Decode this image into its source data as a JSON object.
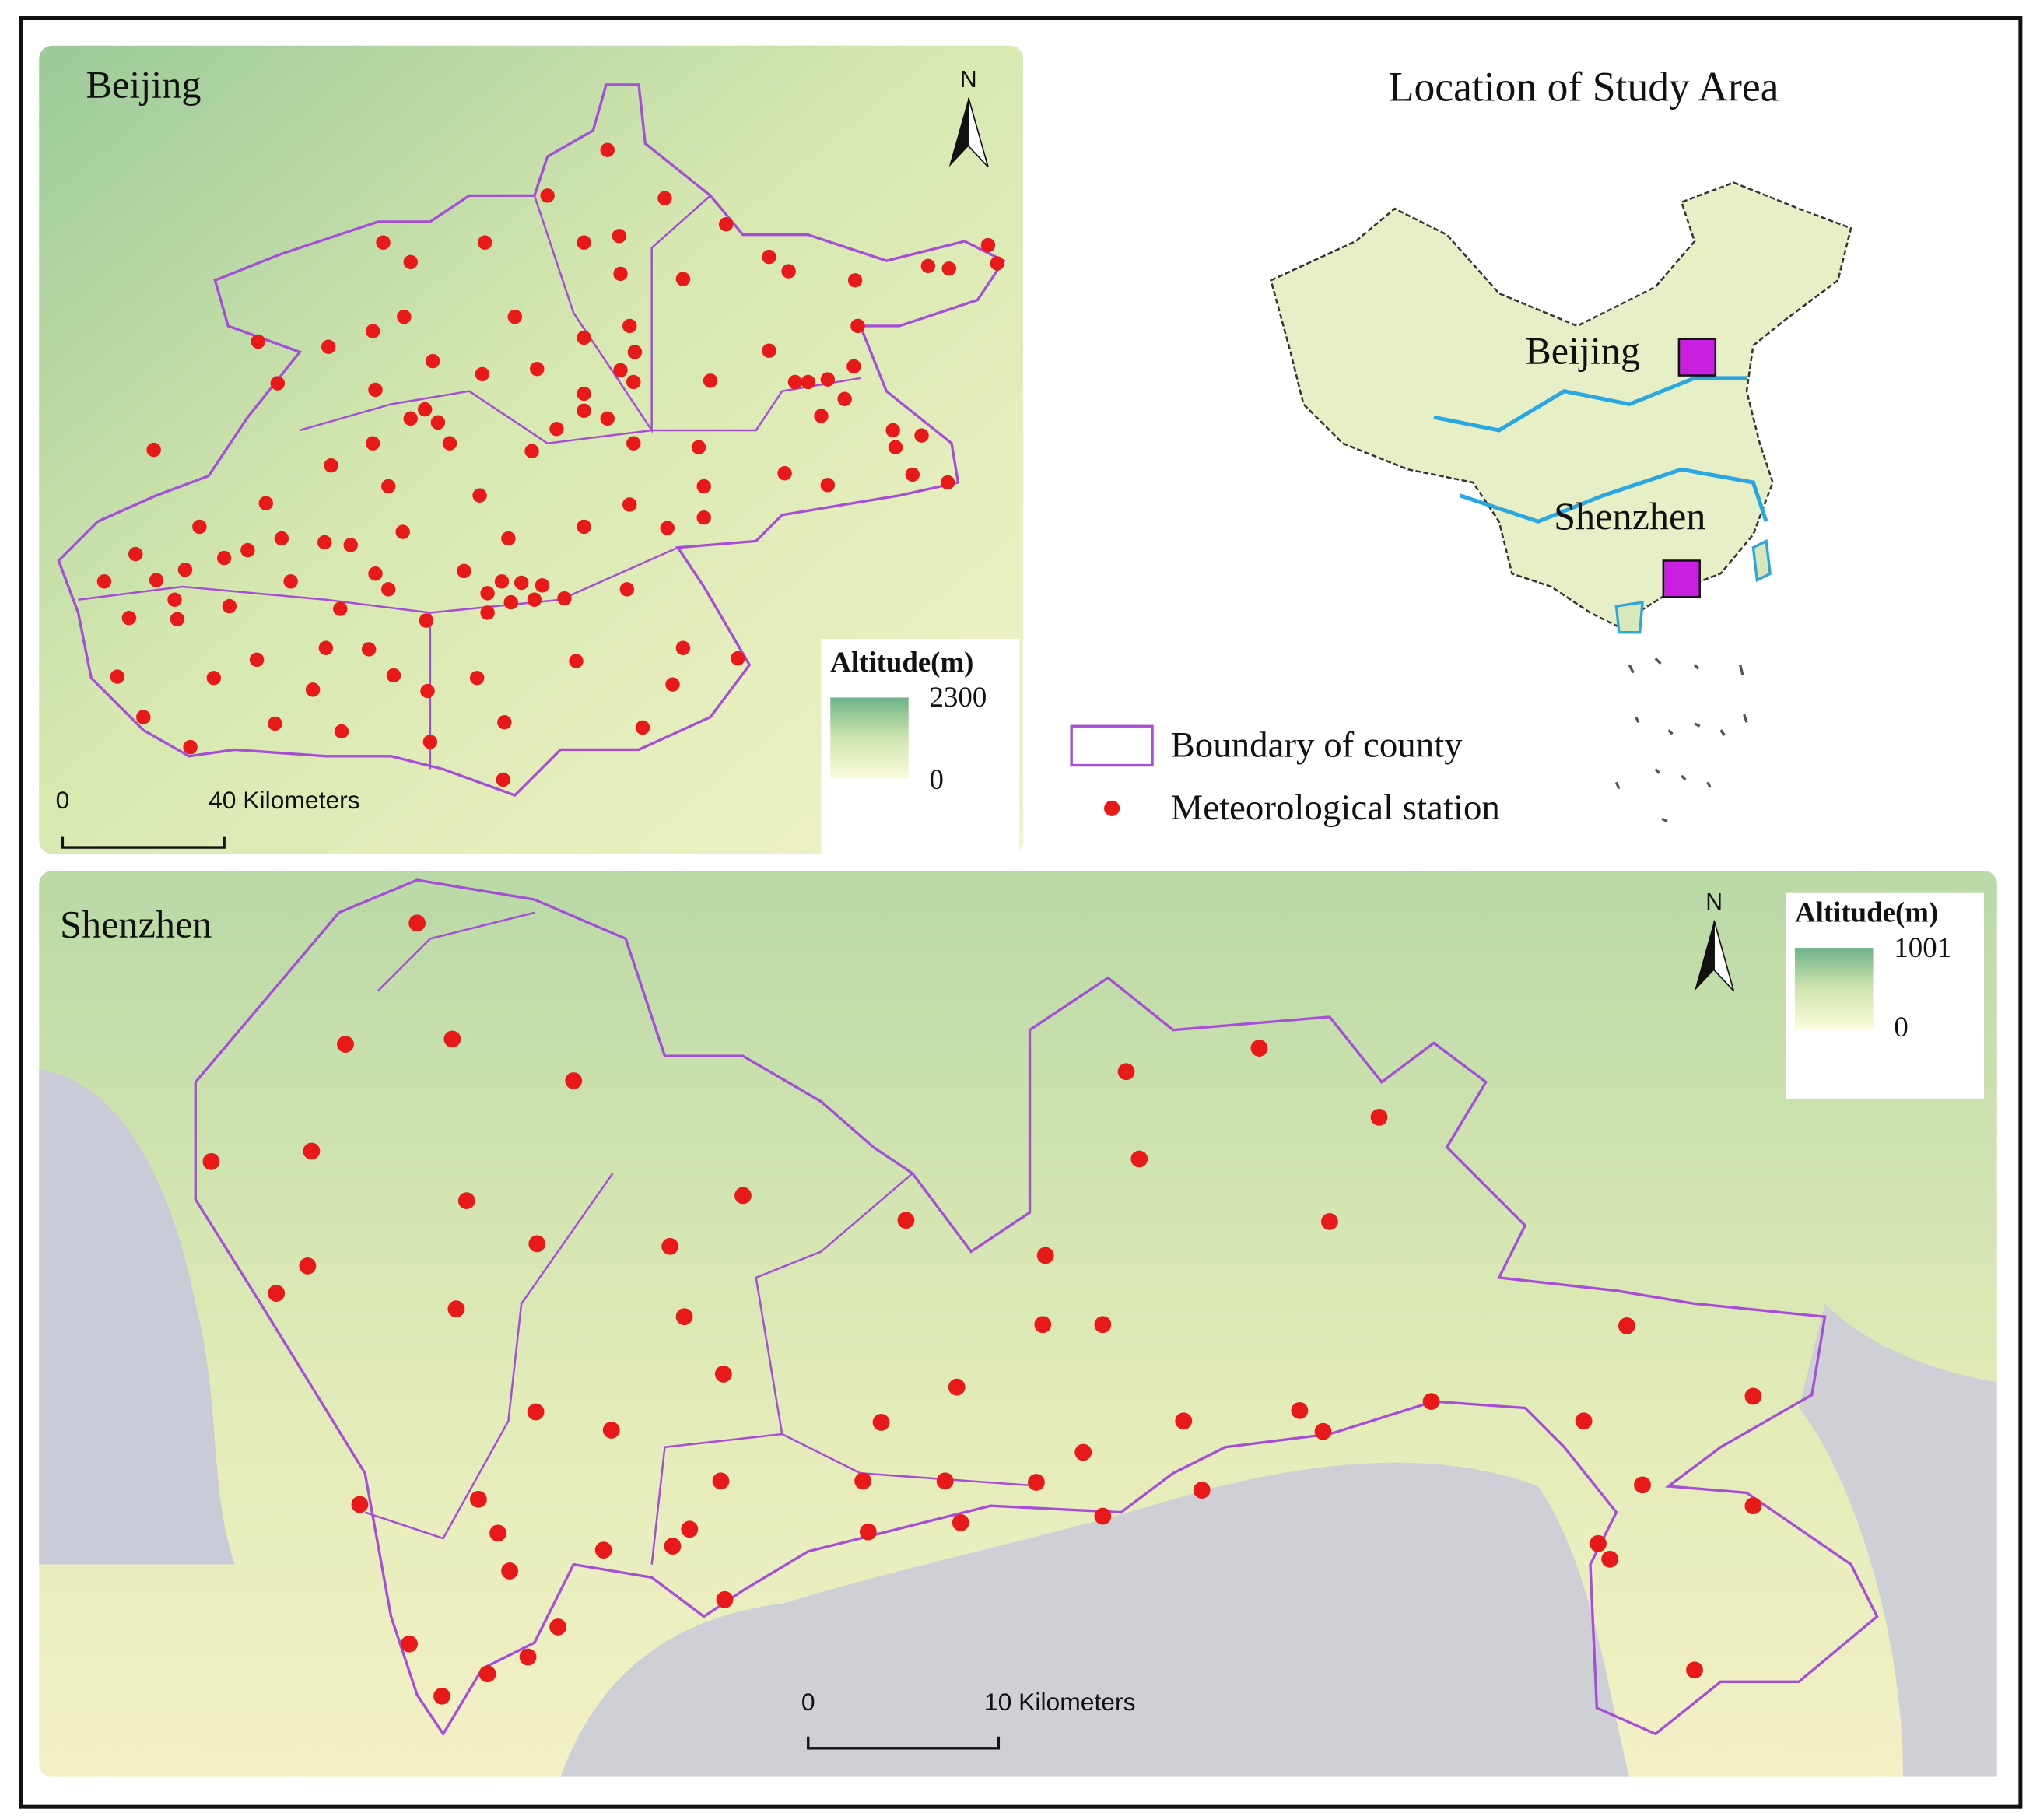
{
  "beijing_map": {
    "title": "Beijing",
    "north": "N",
    "scale_bar": {
      "start": "0",
      "end": "40 Kilometers"
    },
    "altitude_legend": {
      "title": "Altitude(m)",
      "max": 2300,
      "min": 0
    }
  },
  "location_map": {
    "title": "Location of Study Area",
    "labels": [
      "Beijing",
      "Shenzhen"
    ]
  },
  "legend": {
    "items": [
      "Boundary of county",
      "Meteorological station"
    ]
  },
  "shenzhen_map": {
    "title": "Shenzhen",
    "north": "N",
    "scale_bar": {
      "start": "0",
      "end": "10 Kilometers"
    },
    "altitude_legend": {
      "title": "Altitude(m)",
      "max": 1001,
      "min": 0
    }
  }
}
